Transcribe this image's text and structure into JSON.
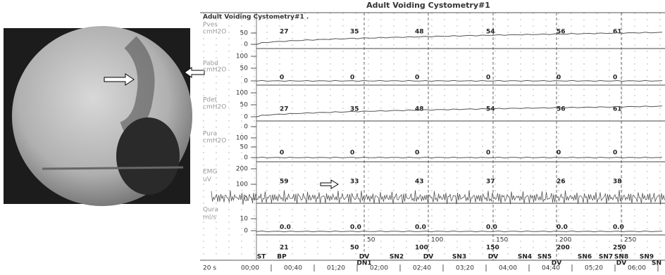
{
  "header": {
    "title": "Adult Voiding Cystometry#1",
    "subtitle": "Adult Voiding Cystometry#1 ."
  },
  "channels": [
    {
      "label": [
        "Pves",
        "cmH2O"
      ],
      "ticks": [
        "50",
        "0"
      ],
      "readings": [
        "27",
        "35",
        "48",
        "54",
        "56",
        "61"
      ]
    },
    {
      "label": [
        "Pabd",
        "cmH2O"
      ],
      "ticks": [
        "100",
        "50",
        "0"
      ],
      "readings": [
        "0",
        "0",
        "0",
        "0",
        "0",
        "0"
      ]
    },
    {
      "label": [
        "Pdet",
        "cmH2O"
      ],
      "ticks": [
        "100",
        "50",
        "0"
      ],
      "readings": [
        "27",
        "35",
        "48",
        "54",
        "56",
        "61"
      ]
    },
    {
      "label": [
        "Pura",
        "cmH2O"
      ],
      "ticks": [
        "0",
        "100",
        "50",
        "0"
      ],
      "readings": [
        "0",
        "0",
        "0",
        "0",
        "0",
        "0"
      ]
    },
    {
      "label": [
        "EMG",
        "uV"
      ],
      "ticks": [
        "200",
        "100",
        "0"
      ],
      "readings": [
        "59",
        "33",
        "43",
        "37",
        "26",
        "38"
      ]
    },
    {
      "label": [
        "Qura",
        "ml/s"
      ],
      "ticks": [
        "10",
        "0"
      ],
      "readings": [
        "0.0",
        "0.0",
        "0.0",
        "0.0",
        "0.0",
        "0.0"
      ]
    }
  ],
  "volumes": {
    "primary": [
      "21",
      "50",
      "100",
      "150",
      "200",
      "250"
    ],
    "secondary": [
      "50",
      "100",
      "150",
      "200",
      "250"
    ]
  },
  "events": {
    "top": [
      "ST",
      "BP",
      "DV",
      "SN2",
      "DV",
      "SN3",
      "DV",
      "SN4",
      "SN5",
      "SN6",
      "SN7",
      "SN8",
      "SN9"
    ],
    "bottom": [
      "DN1",
      "DV",
      "DV",
      "SN"
    ]
  },
  "time": {
    "scale": "20 s",
    "labels": [
      "00;00",
      "00;40",
      "01;20",
      "02;00",
      "02;40",
      "03;20",
      "04;00",
      "04;40",
      "05;20",
      "06;00"
    ]
  }
}
